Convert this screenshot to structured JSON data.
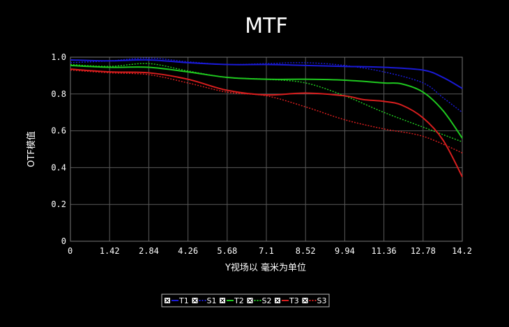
{
  "chart_data": {
    "type": "line",
    "title": "MTF",
    "xlabel": "Y视场以 毫米为单位",
    "ylabel": "OTF模值",
    "xlim": [
      0,
      14.2
    ],
    "ylim": [
      0,
      1.0
    ],
    "x_ticks": [
      "0",
      "1.42",
      "2.84",
      "4.26",
      "5.68",
      "7.1",
      "8.52",
      "9.94",
      "11.36",
      "12.78",
      "14.2"
    ],
    "y_ticks": [
      "0",
      "0.2",
      "0.4",
      "0.6",
      "0.8",
      "1.0"
    ],
    "grid": true,
    "legend_position": "bottom-center",
    "series": [
      {
        "name": "T1",
        "color": "#1a1ad6",
        "dash": "solid",
        "x": [
          0,
          1.42,
          2.84,
          4.26,
          5.68,
          7.1,
          8.52,
          9.94,
          11.36,
          12.78,
          13.5,
          14.2
        ],
        "y": [
          0.985,
          0.98,
          0.985,
          0.97,
          0.96,
          0.96,
          0.955,
          0.95,
          0.945,
          0.93,
          0.89,
          0.83
        ]
      },
      {
        "name": "S1",
        "color": "#1a1ad6",
        "dash": "dotted",
        "x": [
          0,
          1.42,
          2.84,
          4.26,
          5.68,
          7.1,
          8.52,
          9.94,
          11.36,
          12.78,
          13.5,
          14.2
        ],
        "y": [
          0.97,
          0.98,
          0.995,
          0.975,
          0.96,
          0.965,
          0.97,
          0.955,
          0.92,
          0.86,
          0.78,
          0.7
        ]
      },
      {
        "name": "T2",
        "color": "#1fc81f",
        "dash": "solid",
        "x": [
          0,
          1.42,
          2.84,
          4.26,
          5.68,
          7.1,
          8.52,
          9.94,
          11.36,
          12.0,
          12.78,
          13.5,
          14.2
        ],
        "y": [
          0.955,
          0.945,
          0.945,
          0.92,
          0.89,
          0.88,
          0.88,
          0.875,
          0.86,
          0.855,
          0.81,
          0.71,
          0.56
        ]
      },
      {
        "name": "S2",
        "color": "#1fc81f",
        "dash": "dotted",
        "x": [
          0,
          1.42,
          2.84,
          4.26,
          5.68,
          7.1,
          8.52,
          9.94,
          11.36,
          12.78,
          14.2
        ],
        "y": [
          0.96,
          0.95,
          0.965,
          0.925,
          0.89,
          0.88,
          0.86,
          0.79,
          0.7,
          0.62,
          0.54
        ]
      },
      {
        "name": "T3",
        "color": "#d81e1e",
        "dash": "solid",
        "x": [
          0,
          1.42,
          2.84,
          4.26,
          5.68,
          7.1,
          8.52,
          9.94,
          10.6,
          11.36,
          12.0,
          12.78,
          13.5,
          14.2
        ],
        "y": [
          0.935,
          0.92,
          0.915,
          0.88,
          0.82,
          0.795,
          0.805,
          0.79,
          0.77,
          0.76,
          0.74,
          0.67,
          0.55,
          0.35
        ]
      },
      {
        "name": "S3",
        "color": "#d81e1e",
        "dash": "dotted",
        "x": [
          0,
          1.42,
          2.84,
          4.26,
          5.68,
          7.1,
          8.52,
          9.94,
          11.36,
          12.78,
          14.2
        ],
        "y": [
          0.93,
          0.915,
          0.905,
          0.86,
          0.81,
          0.79,
          0.73,
          0.66,
          0.61,
          0.57,
          0.48
        ]
      }
    ]
  }
}
